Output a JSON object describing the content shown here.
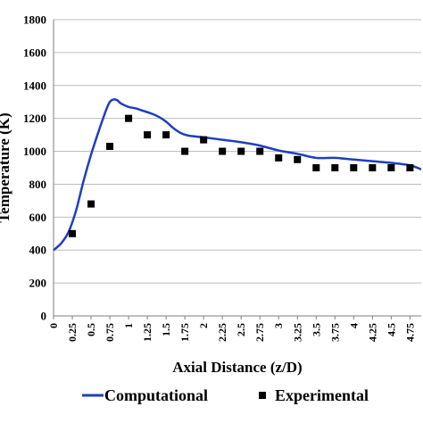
{
  "chart_data": {
    "type": "line",
    "title": "",
    "xlabel": "Axial Distance (z/D)",
    "ylabel": "Temperature (K)",
    "xlim": [
      0,
      4.9
    ],
    "ylim": [
      0,
      1800
    ],
    "yticks": [
      0,
      200,
      400,
      600,
      800,
      1000,
      1200,
      1400,
      1600,
      1800
    ],
    "xticks": [
      "0",
      "0.25",
      "0.5",
      "0.75",
      "1",
      "1.25",
      "1.5",
      "1.75",
      "2",
      "2.25",
      "2.5",
      "2.75",
      "3",
      "3.25",
      "3.5",
      "3.75",
      "4",
      "4.25",
      "4.5",
      "4.75"
    ],
    "grid": "horizontal",
    "legend_position": "bottom",
    "series": [
      {
        "name": "Computational",
        "type": "line",
        "color": "#1f3fbf",
        "x": [
          0,
          0.1,
          0.2,
          0.3,
          0.4,
          0.5,
          0.6,
          0.7,
          0.75,
          0.8,
          0.85,
          0.9,
          1.0,
          1.1,
          1.2,
          1.3,
          1.4,
          1.5,
          1.6,
          1.7,
          1.8,
          2.0,
          2.25,
          2.5,
          2.75,
          3.0,
          3.25,
          3.5,
          3.75,
          4.0,
          4.25,
          4.5,
          4.75,
          4.9
        ],
        "y": [
          400,
          440,
          510,
          640,
          820,
          980,
          1120,
          1250,
          1300,
          1315,
          1310,
          1290,
          1270,
          1260,
          1245,
          1230,
          1210,
          1180,
          1140,
          1110,
          1095,
          1085,
          1070,
          1055,
          1035,
          1005,
          985,
          960,
          960,
          950,
          940,
          930,
          915,
          890
        ]
      },
      {
        "name": "Experimental",
        "type": "scatter",
        "color": "#000000",
        "x": [
          0.25,
          0.5,
          0.75,
          1.0,
          1.25,
          1.5,
          1.75,
          2.0,
          2.25,
          2.5,
          2.75,
          3.0,
          3.25,
          3.5,
          3.75,
          4.0,
          4.25,
          4.5,
          4.75
        ],
        "y": [
          500,
          680,
          1030,
          1200,
          1100,
          1100,
          1000,
          1070,
          1000,
          1000,
          1000,
          960,
          950,
          900,
          900,
          900,
          900,
          900,
          900
        ]
      }
    ]
  }
}
